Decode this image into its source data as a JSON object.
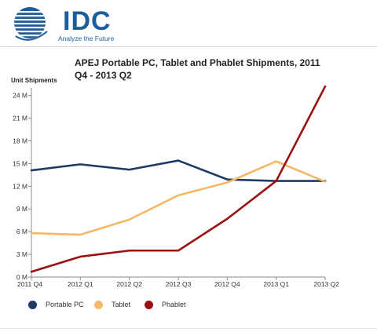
{
  "brand": {
    "name": "IDC",
    "tagline": "Analyze the Future"
  },
  "chart_data": {
    "type": "line",
    "title": "APEJ Portable PC, Tablet and Phablet Shipments, 2011 Q4 - 2013 Q2",
    "ylabel": "Unit Shipments",
    "xlabel": "",
    "categories": [
      "2011 Q4",
      "2012 Q1",
      "2012 Q2",
      "2012 Q3",
      "2012 Q4",
      "2013 Q1",
      "2013 Q2"
    ],
    "yticks": [
      "0 M",
      "3 M",
      "6 M",
      "9 M",
      "12 M",
      "15 M",
      "18 M",
      "21 M",
      "24 M"
    ],
    "ylim": [
      0,
      25
    ],
    "grid": false,
    "legend": "bottom",
    "series": [
      {
        "name": "Portable PC",
        "color": "#1f3a68",
        "values": [
          14.1,
          14.9,
          14.2,
          15.4,
          12.9,
          12.7,
          12.7
        ]
      },
      {
        "name": "Tablet",
        "color": "#f5b867",
        "values": [
          5.8,
          5.6,
          7.6,
          10.8,
          12.5,
          15.3,
          12.6
        ]
      },
      {
        "name": "Phablet",
        "color": "#9b1111",
        "values": [
          0.7,
          2.7,
          3.5,
          3.5,
          7.7,
          12.7,
          25.2
        ]
      }
    ]
  }
}
